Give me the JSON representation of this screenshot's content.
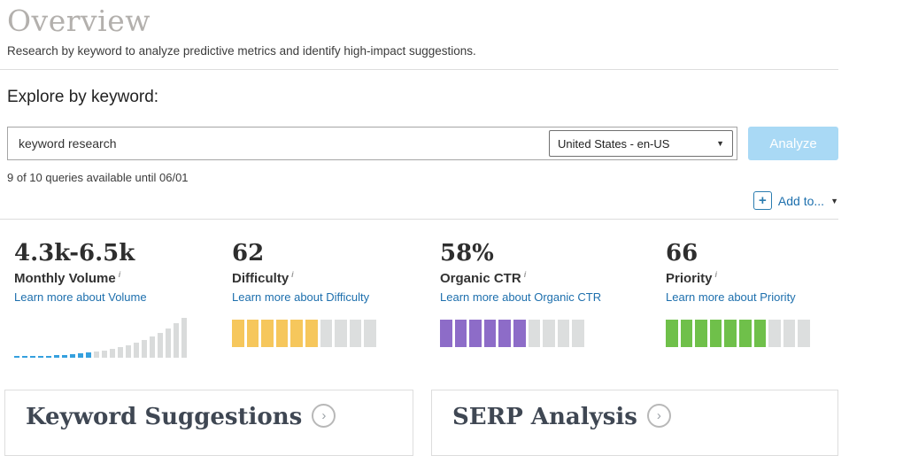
{
  "page": {
    "title": "Overview",
    "subtitle": "Research by keyword to analyze predictive metrics and identify high-impact suggestions."
  },
  "explore": {
    "heading": "Explore by keyword:",
    "keyword_input": {
      "value": "keyword research"
    },
    "locale_dropdown": {
      "selected": "United States - en-US",
      "caret": "▼"
    },
    "analyze_button": "Analyze",
    "quota_text": "9 of 10 queries available until 06/01",
    "add_to": {
      "label": "Add to...",
      "plus": "+",
      "caret": "▼"
    }
  },
  "metrics": [
    {
      "value": "4.3k-6.5k",
      "label": "Monthly Volume",
      "info": "i",
      "link": "Learn more about Volume"
    },
    {
      "value": "62",
      "label": "Difficulty",
      "info": "i",
      "link": "Learn more about Difficulty"
    },
    {
      "value": "58%",
      "label": "Organic CTR",
      "info": "i",
      "link": "Learn more about Organic CTR"
    },
    {
      "value": "66",
      "label": "Priority",
      "info": "i",
      "link": "Learn more about Priority"
    }
  ],
  "panels": [
    {
      "title": "Keyword Suggestions",
      "chevron": "›"
    },
    {
      "title": "SERP Analysis",
      "chevron": "›"
    }
  ],
  "colors": {
    "accent_blue": "#1d6fad",
    "analyze_bg": "#a9d9f5",
    "gauge_empty": "#dcdede"
  },
  "chart_data": [
    {
      "type": "bar",
      "name": "monthly-volume-distribution",
      "values": [
        2,
        2,
        2,
        2,
        2,
        3,
        3,
        4,
        5,
        6,
        7,
        8,
        10,
        12,
        14,
        17,
        20,
        24,
        28,
        33,
        39,
        45
      ],
      "highlight_count": 10,
      "highlight_color": "#35a0de",
      "bar_color": "#d9dbdb"
    },
    {
      "type": "gauge",
      "name": "difficulty-gauge",
      "value": 62,
      "segments": 10,
      "filled": 6,
      "color": "#f6c75c"
    },
    {
      "type": "gauge",
      "name": "organic-ctr-gauge",
      "value": 58,
      "segments": 10,
      "filled": 6,
      "color": "#8d6cc8"
    },
    {
      "type": "gauge",
      "name": "priority-gauge",
      "value": 66,
      "segments": 10,
      "filled": 7,
      "color": "#6fc04a"
    }
  ]
}
